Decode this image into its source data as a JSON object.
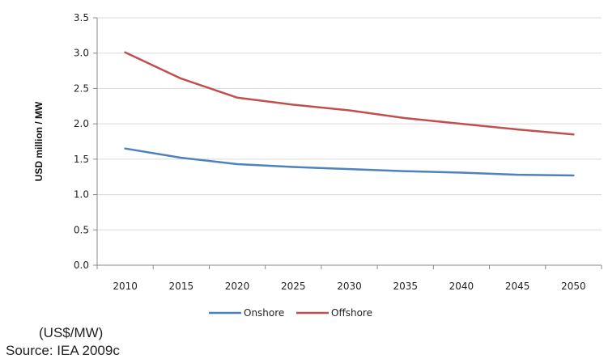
{
  "chart_data": {
    "type": "line",
    "title": "",
    "xlabel": "",
    "ylabel": "USD million / MW",
    "x": [
      2010,
      2015,
      2020,
      2025,
      2030,
      2035,
      2040,
      2045,
      2050
    ],
    "xlim": [
      2007.5,
      2052.5
    ],
    "ylim": [
      0,
      3.5
    ],
    "yticks": [
      "0.0",
      "0.5",
      "1.0",
      "1.5",
      "2.0",
      "2.5",
      "3.0",
      "3.5"
    ],
    "xticks": [
      "2010",
      "2015",
      "2020",
      "2025",
      "2030",
      "2035",
      "2040",
      "2045",
      "2050"
    ],
    "grid": true,
    "legend_position": "bottom",
    "series": [
      {
        "name": "Onshore",
        "color": "#4f81bd",
        "values": [
          1.65,
          1.52,
          1.43,
          1.39,
          1.36,
          1.33,
          1.31,
          1.28,
          1.27
        ]
      },
      {
        "name": "Offshore",
        "color": "#c0504d",
        "values": [
          3.01,
          2.64,
          2.37,
          2.27,
          2.19,
          2.08,
          2.0,
          1.92,
          1.85
        ]
      }
    ]
  },
  "notes": {
    "unit": "(US$/MW)",
    "source": "Source: IEA 2009c"
  }
}
